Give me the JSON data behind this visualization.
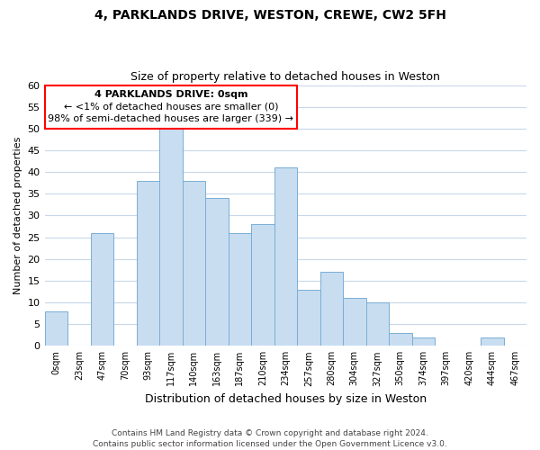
{
  "title1": "4, PARKLANDS DRIVE, WESTON, CREWE, CW2 5FH",
  "title2": "Size of property relative to detached houses in Weston",
  "xlabel": "Distribution of detached houses by size in Weston",
  "ylabel": "Number of detached properties",
  "bar_color": "#c8ddf0",
  "bar_edge_color": "#7aaed4",
  "categories": [
    "0sqm",
    "23sqm",
    "47sqm",
    "70sqm",
    "93sqm",
    "117sqm",
    "140sqm",
    "163sqm",
    "187sqm",
    "210sqm",
    "234sqm",
    "257sqm",
    "280sqm",
    "304sqm",
    "327sqm",
    "350sqm",
    "374sqm",
    "397sqm",
    "420sqm",
    "444sqm",
    "467sqm"
  ],
  "values": [
    8,
    0,
    26,
    0,
    38,
    50,
    38,
    34,
    26,
    28,
    41,
    13,
    17,
    11,
    10,
    3,
    2,
    0,
    0,
    2,
    0
  ],
  "ylim": [
    0,
    60
  ],
  "yticks": [
    0,
    5,
    10,
    15,
    20,
    25,
    30,
    35,
    40,
    45,
    50,
    55,
    60
  ],
  "annotation_line1": "4 PARKLANDS DRIVE: 0sqm",
  "annotation_line2": "← <1% of detached houses are smaller (0)",
  "annotation_line3": "98% of semi-detached houses are larger (339) →",
  "footer1": "Contains HM Land Registry data © Crown copyright and database right 2024.",
  "footer2": "Contains public sector information licensed under the Open Government Licence v3.0.",
  "background_color": "#ffffff",
  "grid_color": "#c8d8ea"
}
